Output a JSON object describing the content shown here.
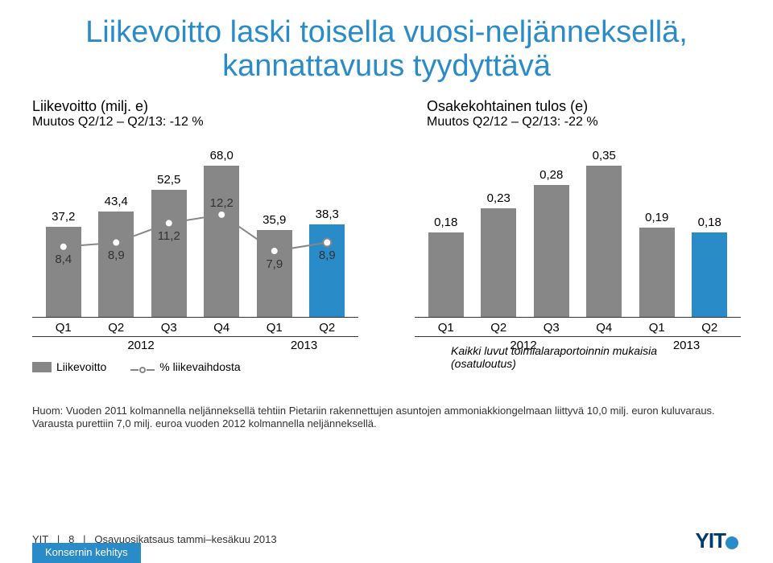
{
  "colors": {
    "title": "#2a8bc9",
    "bar_gray": "#878787",
    "bar_blue": "#2a8bc9",
    "line": "#878787",
    "point_fill": "#ffffff",
    "axis": "#333333",
    "tab_bg": "#2a8bc9",
    "logo_text": "#003a70",
    "logo_dot": "#2a8bc9"
  },
  "title": "Liikevoitto laski toisella vuosi-neljänneksellä, kannattavuus tyydyttävä",
  "left": {
    "label": "Liikevoitto (milj. e)",
    "change": "Muutos Q2/12 – Q2/13: -12 %",
    "ymax": 70,
    "bars": [
      {
        "x": "Q1",
        "val": 37.2,
        "label": "37,2",
        "color": "#878787",
        "line": 8.4,
        "line_label": "8,4",
        "line_pos": "below"
      },
      {
        "x": "Q2",
        "val": 43.4,
        "label": "43,4",
        "color": "#878787",
        "line": 8.9,
        "line_label": "8,9",
        "line_pos": "below"
      },
      {
        "x": "Q3",
        "val": 52.5,
        "label": "52,5",
        "color": "#878787",
        "line": 11.2,
        "line_label": "11,2",
        "line_pos": "below"
      },
      {
        "x": "Q4",
        "val": 68.0,
        "label": "68,0",
        "color": "#878787",
        "line": 12.2,
        "line_label": "12,2",
        "line_pos": "above"
      },
      {
        "x": "Q1",
        "val": 35.9,
        "label": "35,9",
        "color": "#878787",
        "line": 7.9,
        "line_label": "7,9",
        "line_pos": "below"
      },
      {
        "x": "Q2",
        "val": 38.3,
        "label": "38,3",
        "color": "#2a8bc9",
        "line": 8.9,
        "line_label": "8,9",
        "line_pos": "below"
      }
    ],
    "years": [
      "2012",
      "2013"
    ],
    "legend_bar": "Liikevoitto",
    "legend_line": "% liikevaihdosta"
  },
  "right": {
    "label": "Osakekohtainen tulos (e)",
    "change": "Muutos Q2/12 – Q2/13: -22 %",
    "ymax": 0.36,
    "bars": [
      {
        "x": "Q1",
        "val": 0.18,
        "label": "0,18",
        "color": "#878787"
      },
      {
        "x": "Q2",
        "val": 0.23,
        "label": "0,23",
        "color": "#878787"
      },
      {
        "x": "Q3",
        "val": 0.28,
        "label": "0,28",
        "color": "#878787"
      },
      {
        "x": "Q4",
        "val": 0.35,
        "label": "0,35",
        "color": "#878787"
      },
      {
        "x": "Q1",
        "val": 0.19,
        "label": "0,19",
        "color": "#878787"
      },
      {
        "x": "Q2",
        "val": 0.18,
        "label": "0,18",
        "color": "#2a8bc9"
      }
    ],
    "years": [
      "2012",
      "2013"
    ],
    "caption": "Kaikki luvut toimialaraportoinnin mukaisia (osatuloutus)"
  },
  "note": "Huom: Vuoden 2011 kolmannella neljänneksellä tehtiin Pietariin rakennettujen asuntojen ammoniakkiongelmaan liittyvä 10,0 milj. euron kuluvaraus. Varausta purettiin 7,0 milj. euroa vuoden 2012 kolmannella neljänneksellä.",
  "footer": {
    "brand": "YIT",
    "sep": "|",
    "page": "8",
    "doc": "Osavuosikatsaus tammi–kesäkuu 2013",
    "tab": "Konsernin kehitys"
  }
}
